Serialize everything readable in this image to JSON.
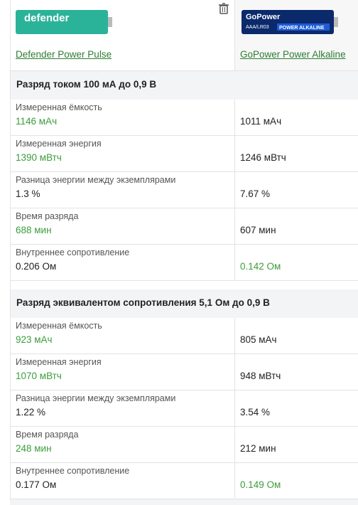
{
  "products": [
    {
      "name": "Defender Power Pulse",
      "image_texts": [
        "defender"
      ]
    },
    {
      "name": "GoPower Power Alkaline",
      "image_texts": [
        "GoPower",
        "AAA/LR03",
        "POWER ALKALINE"
      ]
    }
  ],
  "sections": [
    {
      "title": "Разряд током 100 мА до 0,9 В",
      "rows": [
        {
          "label": "Измеренная ёмкость",
          "values": [
            "1146 мАч",
            "1011 мАч"
          ],
          "better": 0
        },
        {
          "label": "Измеренная энергия",
          "values": [
            "1390 мВтч",
            "1246 мВтч"
          ],
          "better": 0
        },
        {
          "label": "Разница энергии между экземплярами",
          "values": [
            "1.3 %",
            "7.67 %"
          ],
          "better": null
        },
        {
          "label": "Время разряда",
          "values": [
            "688 мин",
            "607 мин"
          ],
          "better": 0
        },
        {
          "label": "Внутреннее сопротивление",
          "values": [
            "0.206 Ом",
            "0.142 Ом"
          ],
          "better": 1
        }
      ]
    },
    {
      "title": "Разряд эквивалентом сопротивления 5,1 Ом до 0,9 В",
      "rows": [
        {
          "label": "Измеренная ёмкость",
          "values": [
            "923 мАч",
            "805 мАч"
          ],
          "better": 0
        },
        {
          "label": "Измеренная энергия",
          "values": [
            "1070 мВтч",
            "948 мВтч"
          ],
          "better": 0
        },
        {
          "label": "Разница энергии между экземплярами",
          "values": [
            "1.22 %",
            "3.54 %"
          ],
          "better": null
        },
        {
          "label": "Время разряда",
          "values": [
            "248 мин",
            "212 мин"
          ],
          "better": 0
        },
        {
          "label": "Внутреннее сопротивление",
          "values": [
            "0.177 Ом",
            "0.149 Ом"
          ],
          "better": 1
        }
      ]
    }
  ]
}
